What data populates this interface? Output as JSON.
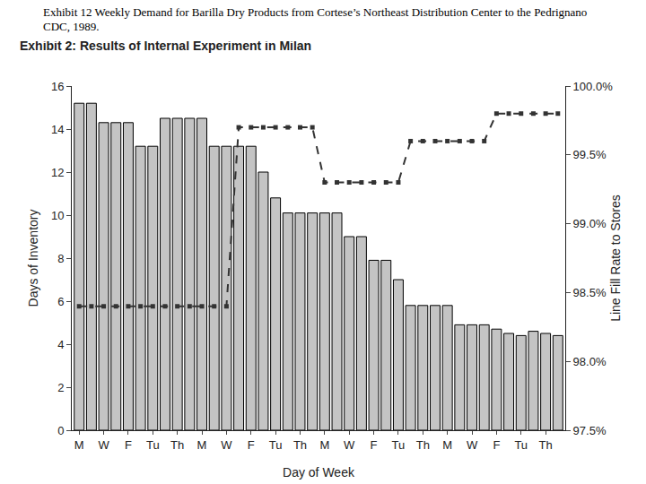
{
  "chart_data": {
    "type": "bar",
    "title": "Exhibit 12  Weekly Demand for Barilla Dry Products from Cortese’s Northeast Distribution Center to the Pedrignano CDC, 1989.",
    "subtitle": "Exhibit 2: Results of Internal Experiment in Milan",
    "x_label": "Day of Week",
    "y_label": "Days of Inventory",
    "y2_label": "Line Fill Rate to Stores",
    "categories": [
      "M",
      null,
      "W",
      null,
      "F",
      null,
      "Tu",
      null,
      "Th",
      null,
      "M",
      null,
      "W",
      null,
      "F",
      null,
      "Tu",
      null,
      "Th",
      null,
      "M",
      null,
      "W",
      null,
      "F",
      null,
      "Tu",
      null,
      "Th",
      null,
      "M",
      null,
      "W",
      null,
      "F",
      null,
      "Tu",
      null,
      "Th",
      null
    ],
    "series": [
      {
        "type": "bar",
        "color": "#c4c4c4",
        "values": [
          15.2,
          15.2,
          14.3,
          14.3,
          14.3,
          13.2,
          13.2,
          14.5,
          14.5,
          14.5,
          14.5,
          13.2,
          13.2,
          13.2,
          13.2,
          12.0,
          10.8,
          10.1,
          10.1,
          10.1,
          10.1,
          10.1,
          9.0,
          9.0,
          7.9,
          7.9,
          7.0,
          5.8,
          5.8,
          5.8,
          5.8,
          4.9,
          4.9,
          4.9,
          4.7,
          4.5,
          4.4,
          4.6,
          4.5,
          4.4
        ]
      },
      {
        "type": "line",
        "axis": "y2",
        "color": "#333333",
        "marker": "square",
        "line_style": "dash",
        "values": [
          98.4,
          98.4,
          98.4,
          98.4,
          98.4,
          98.4,
          98.4,
          98.4,
          98.4,
          98.4,
          98.4,
          98.4,
          98.4,
          99.7,
          99.7,
          99.7,
          99.7,
          99.7,
          99.7,
          99.7,
          99.3,
          99.3,
          99.3,
          99.3,
          99.3,
          99.3,
          99.3,
          99.6,
          99.6,
          99.6,
          99.6,
          99.6,
          99.6,
          99.6,
          99.8,
          99.8,
          99.8,
          99.8,
          99.8,
          99.8
        ]
      }
    ],
    "ylim": [
      0,
      16
    ],
    "yticks": [
      0,
      2,
      4,
      6,
      8,
      10,
      12,
      14,
      16
    ],
    "y2lim": [
      97.5,
      100
    ],
    "y2ticks": [
      {
        "value": 97.5,
        "label": "97.5%"
      },
      {
        "value": 98.0,
        "label": "98.0%"
      },
      {
        "value": 98.5,
        "label": "98.5%"
      },
      {
        "value": 99.0,
        "label": "99.0%"
      },
      {
        "value": 99.5,
        "label": "99.5%"
      },
      {
        "value": 100.0,
        "label": "100.0%"
      }
    ],
    "grid": false
  }
}
